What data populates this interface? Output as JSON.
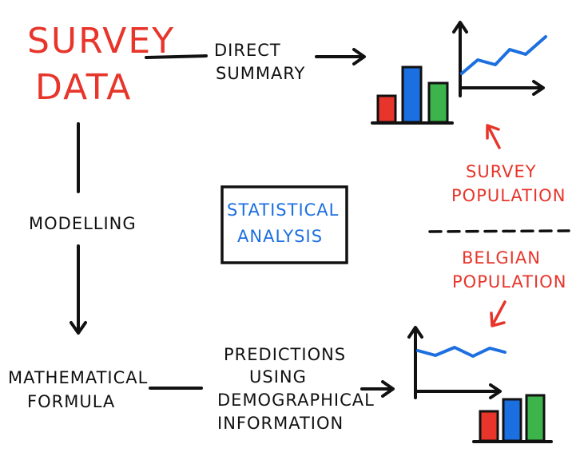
{
  "title": {
    "line1": "SURVEY",
    "line2": "DATA"
  },
  "direct_summary": {
    "line1": "DIRECT",
    "line2": "SUMMARY"
  },
  "modelling": "MODELLING",
  "statistical_analysis": {
    "line1": "STATISTICAL",
    "line2": "ANALYSIS"
  },
  "mathematical_formula": {
    "line1": "MATHEMATICAL",
    "line2": "FORMULA"
  },
  "predictions": {
    "line1": "PREDICTIONS",
    "line2": "USING",
    "line3": "DEMOGRAPHICAL",
    "line4": "INFORMATION"
  },
  "survey_population": {
    "line1": "SURVEY",
    "line2": "POPULATION"
  },
  "belgian_population": {
    "line1": "BELGIAN",
    "line2": "POPULATION"
  },
  "colors": {
    "title": "#e8352b",
    "accent_blue": "#1c6fe0",
    "bar_red": "#e8352b",
    "bar_blue": "#1c6fe0",
    "bar_green": "#3cb44b",
    "ink": "#111111"
  }
}
